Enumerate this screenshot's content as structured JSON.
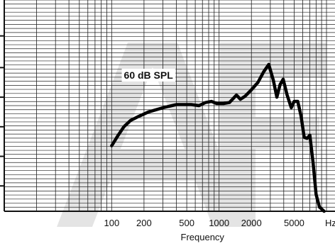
{
  "chart_data": {
    "type": "line",
    "title": "",
    "xlabel": "Frequency",
    "ylabel": "",
    "x_scale": "log",
    "xlim": [
      10,
      12000
    ],
    "x_tick_labels": [
      {
        "value": 100,
        "label": "100"
      },
      {
        "value": 200,
        "label": "200"
      },
      {
        "value": 500,
        "label": "500"
      },
      {
        "value": 1000,
        "label": "1000"
      },
      {
        "value": 2000,
        "label": "2000"
      },
      {
        "value": 5000,
        "label": "5000"
      },
      {
        "value": 10000,
        "label": "Hz"
      }
    ],
    "y_tick_labels": [],
    "grid": true,
    "annotations": [
      {
        "text": "60 dB SPL",
        "x": 220,
        "y": 0.64
      }
    ],
    "series": [
      {
        "name": "60 dB SPL",
        "points": [
          [
            100,
            0.31
          ],
          [
            115,
            0.36
          ],
          [
            130,
            0.4
          ],
          [
            150,
            0.43
          ],
          [
            180,
            0.45
          ],
          [
            220,
            0.47
          ],
          [
            300,
            0.49
          ],
          [
            400,
            0.505
          ],
          [
            550,
            0.505
          ],
          [
            650,
            0.5
          ],
          [
            750,
            0.515
          ],
          [
            850,
            0.52
          ],
          [
            950,
            0.51
          ],
          [
            1100,
            0.51
          ],
          [
            1250,
            0.515
          ],
          [
            1450,
            0.55
          ],
          [
            1580,
            0.53
          ],
          [
            1750,
            0.545
          ],
          [
            2000,
            0.575
          ],
          [
            2300,
            0.61
          ],
          [
            2600,
            0.66
          ],
          [
            2900,
            0.695
          ],
          [
            3200,
            0.62
          ],
          [
            3450,
            0.54
          ],
          [
            3700,
            0.6
          ],
          [
            3950,
            0.625
          ],
          [
            4300,
            0.55
          ],
          [
            4700,
            0.49
          ],
          [
            5000,
            0.52
          ],
          [
            5400,
            0.52
          ],
          [
            5800,
            0.45
          ],
          [
            6200,
            0.35
          ],
          [
            6600,
            0.345
          ],
          [
            7000,
            0.36
          ],
          [
            7500,
            0.23
          ],
          [
            8000,
            0.08
          ],
          [
            8600,
            0.02
          ],
          [
            9500,
            0.0
          ]
        ]
      }
    ]
  }
}
